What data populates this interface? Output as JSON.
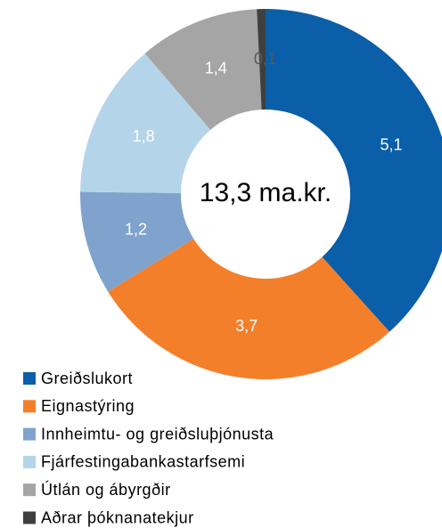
{
  "chart_data": {
    "type": "donut",
    "categories": [
      "Greiðslukort",
      "Eignastýring",
      "Innheimtu- og greiðsluþjónusta",
      "Fjárfestingabankastarfsemi",
      "Útlán og ábyrgðir",
      "Aðrar þóknanatekjur"
    ],
    "values": [
      5.1,
      3.7,
      1.2,
      1.8,
      1.4,
      0.1
    ],
    "value_labels": [
      "5,1",
      "3,7",
      "1,2",
      "1,8",
      "1,4",
      "0,1"
    ],
    "colors": [
      "#0b5ea8",
      "#f47f2a",
      "#7fa3cc",
      "#b4d4ea",
      "#a5a5a5",
      "#3f3f3f"
    ],
    "center_text": "13,3 ma.kr.",
    "legend": "bottom-left"
  }
}
